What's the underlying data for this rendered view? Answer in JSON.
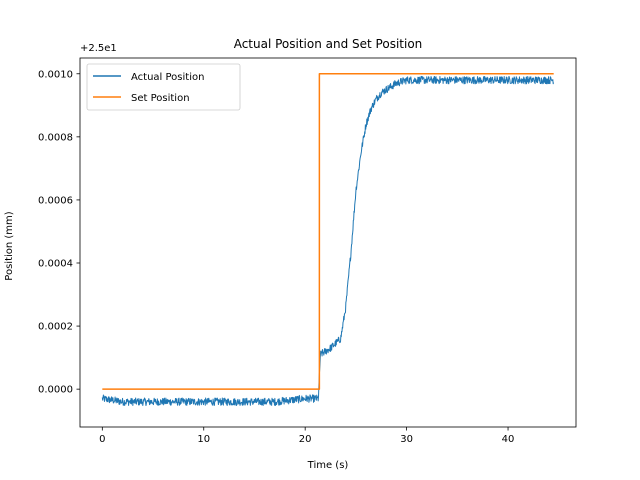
{
  "chart_data": {
    "type": "line",
    "title": "Actual Position and Set Position",
    "xlabel": "Time (s)",
    "ylabel": "Position (mm)",
    "offset_label": "+2.5e1",
    "xlim": [
      -2.2,
      46.7
    ],
    "ylim": [
      -0.00012,
      0.00105
    ],
    "x_ticks": [
      0,
      10,
      20,
      30,
      40
    ],
    "x_tick_labels": [
      "0",
      "10",
      "20",
      "30",
      "40"
    ],
    "y_ticks": [
      0.0,
      0.0002,
      0.0004,
      0.0006,
      0.0008,
      0.001
    ],
    "y_tick_labels": [
      "0.0000",
      "0.0002",
      "0.0004",
      "0.0006",
      "0.0008",
      "0.0010"
    ],
    "grid": false,
    "legend_position": "upper-left",
    "series": [
      {
        "name": "Actual Position",
        "color": "#1f77b4",
        "x": [
          0,
          2,
          5,
          8,
          11,
          14,
          17,
          20,
          21.3,
          21.5,
          22.5,
          23.5,
          24.0,
          24.5,
          25.0,
          25.5,
          26.0,
          26.5,
          27.0,
          27.5,
          28.0,
          28.5,
          29.0,
          30.0,
          32.0,
          35.0,
          38.0,
          41.0,
          44.5
        ],
        "y": [
          -3e-05,
          -4e-05,
          -4e-05,
          -4e-05,
          -4e-05,
          -4e-05,
          -4e-05,
          -3e-05,
          -3e-05,
          0.00011,
          0.00013,
          0.00016,
          0.00026,
          0.00043,
          0.00063,
          0.00075,
          0.00084,
          0.00089,
          0.00092,
          0.00094,
          0.00095,
          0.00096,
          0.00097,
          0.00098,
          0.00098,
          0.00098,
          0.00098,
          0.00098,
          0.00098
        ],
        "noise": 1.2e-05
      },
      {
        "name": "Set Position",
        "color": "#ff7f0e",
        "x": [
          0,
          21.4,
          21.4,
          44.5
        ],
        "y": [
          0.0,
          0.0,
          0.001,
          0.001
        ]
      }
    ]
  }
}
